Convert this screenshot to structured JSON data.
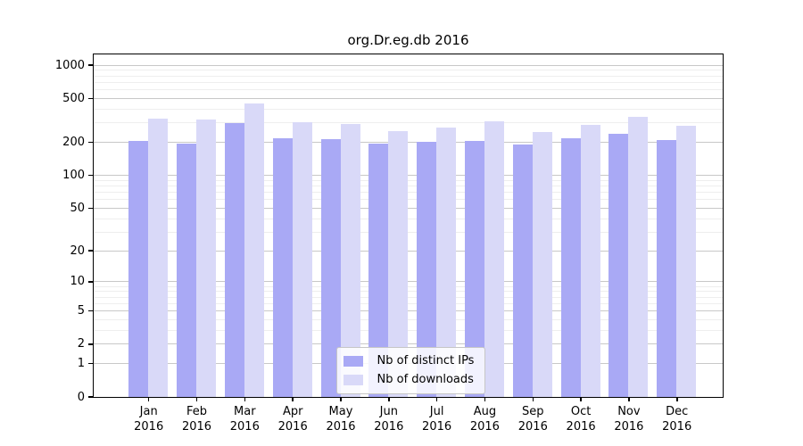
{
  "chart_data": {
    "type": "bar",
    "title": "org.Dr.eg.db 2016",
    "categories": [
      "Jan",
      "Feb",
      "Mar",
      "Apr",
      "May",
      "Jun",
      "Jul",
      "Aug",
      "Sep",
      "Oct",
      "Nov",
      "Dec"
    ],
    "year_label": "2016",
    "series": [
      {
        "name": "Nb of distinct IPs",
        "color": "#a9a9f5",
        "values": [
          205,
          192,
          297,
          214,
          212,
          194,
          201,
          203,
          188,
          215,
          238,
          206
        ]
      },
      {
        "name": "Nb of downloads",
        "color": "#d9d9f8",
        "values": [
          327,
          317,
          446,
          303,
          289,
          251,
          270,
          308,
          246,
          286,
          334,
          282
        ]
      }
    ],
    "y_ticks": [
      0,
      1,
      2,
      5,
      10,
      20,
      50,
      100,
      200,
      500,
      1000
    ],
    "scale": "log1p",
    "ylim": [
      0,
      1250
    ],
    "grid": true,
    "legend_position": "lower-center",
    "colors": {
      "major_grid": "#c8c8c8",
      "minor_grid": "#eeeeee",
      "axis": "#000000",
      "background": "#ffffff"
    }
  }
}
